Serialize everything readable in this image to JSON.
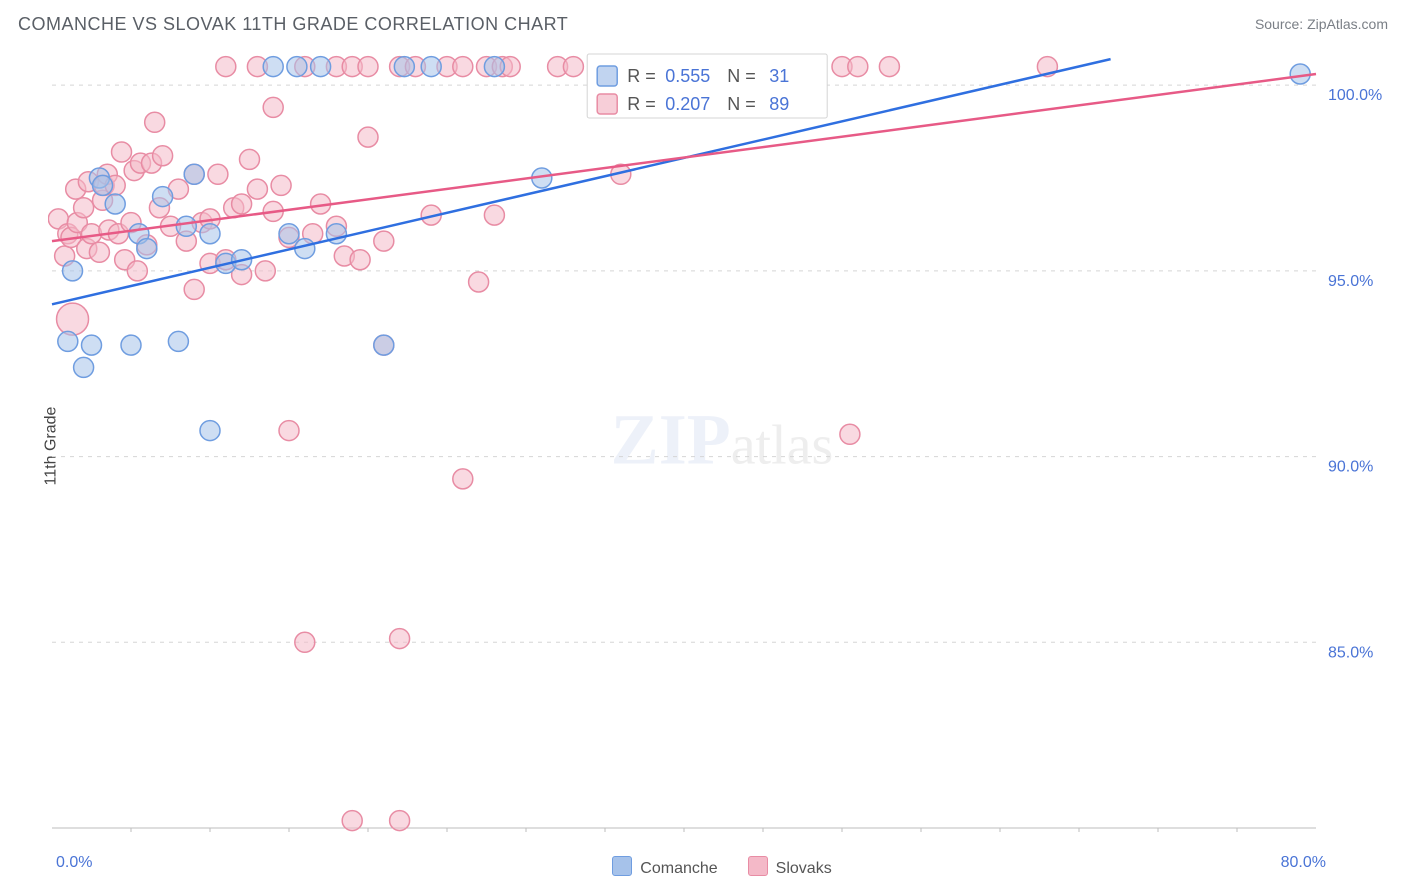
{
  "title": "COMANCHE VS SLOVAK 11TH GRADE CORRELATION CHART",
  "source": "Source: ZipAtlas.com",
  "ylabel": "11th Grade",
  "watermark_part1": "ZIP",
  "watermark_part2": "atlas",
  "chart": {
    "type": "scatter",
    "xlim": [
      0,
      80
    ],
    "ylim": [
      80,
      101
    ],
    "x_tick_labels": {
      "min": "0.0%",
      "max": "80.0%"
    },
    "x_minor_ticks": [
      5,
      10,
      15,
      20,
      25,
      30,
      35,
      40,
      45,
      50,
      55,
      60,
      65,
      70,
      75
    ],
    "y_gridlines": [
      {
        "y": 100,
        "label": "100.0%"
      },
      {
        "y": 95,
        "label": "95.0%"
      },
      {
        "y": 90,
        "label": "90.0%"
      },
      {
        "y": 85,
        "label": "85.0%"
      }
    ],
    "grid_color": "#d5d5d5",
    "axis_color": "#bdbdbd",
    "ytick_label_color": "#4a74d6",
    "ytick_fontsize": 16,
    "background_color": "#ffffff",
    "marker_radius": 10,
    "marker_stroke_width": 1.5,
    "line_width": 2.5,
    "series": [
      {
        "name": "Comanche",
        "fill_color": "#a6c2ea",
        "stroke_color": "#6f9de0",
        "line_color": "#2f6fe0",
        "R": "0.555",
        "N": "31",
        "regression": {
          "x0": 0,
          "y0": 94.1,
          "x1": 67,
          "y1": 100.7
        },
        "points": [
          {
            "x": 1,
            "y": 93.1
          },
          {
            "x": 2,
            "y": 92.4
          },
          {
            "x": 2.5,
            "y": 93.0
          },
          {
            "x": 1.3,
            "y": 95.0
          },
          {
            "x": 3,
            "y": 97.5
          },
          {
            "x": 3.2,
            "y": 97.3
          },
          {
            "x": 4,
            "y": 96.8
          },
          {
            "x": 5,
            "y": 93.0
          },
          {
            "x": 5.5,
            "y": 96.0
          },
          {
            "x": 6,
            "y": 95.6
          },
          {
            "x": 7,
            "y": 97.0
          },
          {
            "x": 8,
            "y": 93.1
          },
          {
            "x": 8.5,
            "y": 96.2
          },
          {
            "x": 9,
            "y": 97.6
          },
          {
            "x": 10,
            "y": 96.0
          },
          {
            "x": 10,
            "y": 90.7
          },
          {
            "x": 11,
            "y": 95.2
          },
          {
            "x": 12,
            "y": 95.3
          },
          {
            "x": 14,
            "y": 100.5
          },
          {
            "x": 15,
            "y": 96.0
          },
          {
            "x": 15.5,
            "y": 100.5
          },
          {
            "x": 16,
            "y": 95.6
          },
          {
            "x": 17,
            "y": 100.5
          },
          {
            "x": 18,
            "y": 96.0
          },
          {
            "x": 21,
            "y": 93.0
          },
          {
            "x": 22.3,
            "y": 100.5
          },
          {
            "x": 24,
            "y": 100.5
          },
          {
            "x": 28,
            "y": 100.5
          },
          {
            "x": 31,
            "y": 97.5
          },
          {
            "x": 40,
            "y": 100.5
          },
          {
            "x": 79,
            "y": 100.3
          }
        ]
      },
      {
        "name": "Slovaks",
        "fill_color": "#f4b9c8",
        "stroke_color": "#e88ca4",
        "line_color": "#e75a86",
        "R": "0.207",
        "N": "89",
        "regression": {
          "x0": 0,
          "y0": 95.8,
          "x1": 80,
          "y1": 100.3
        },
        "points": [
          {
            "x": 0.4,
            "y": 96.4
          },
          {
            "x": 0.8,
            "y": 95.4
          },
          {
            "x": 1,
            "y": 96.0
          },
          {
            "x": 1.2,
            "y": 95.9
          },
          {
            "x": 1.3,
            "y": 93.7,
            "r": 16
          },
          {
            "x": 1.5,
            "y": 97.2
          },
          {
            "x": 1.6,
            "y": 96.3
          },
          {
            "x": 2,
            "y": 96.7
          },
          {
            "x": 2.2,
            "y": 95.6
          },
          {
            "x": 2.3,
            "y": 97.4
          },
          {
            "x": 2.5,
            "y": 96.0
          },
          {
            "x": 3,
            "y": 95.5
          },
          {
            "x": 3.2,
            "y": 96.9
          },
          {
            "x": 3.3,
            "y": 97.3
          },
          {
            "x": 3.5,
            "y": 97.6
          },
          {
            "x": 3.6,
            "y": 96.1
          },
          {
            "x": 4,
            "y": 97.3
          },
          {
            "x": 4.2,
            "y": 96.0
          },
          {
            "x": 4.4,
            "y": 98.2
          },
          {
            "x": 4.6,
            "y": 95.3
          },
          {
            "x": 5,
            "y": 96.3
          },
          {
            "x": 5.2,
            "y": 97.7
          },
          {
            "x": 5.4,
            "y": 95.0
          },
          {
            "x": 5.6,
            "y": 97.9
          },
          {
            "x": 6,
            "y": 95.7
          },
          {
            "x": 6.3,
            "y": 97.9
          },
          {
            "x": 6.5,
            "y": 99.0
          },
          {
            "x": 6.8,
            "y": 96.7
          },
          {
            "x": 7,
            "y": 98.1
          },
          {
            "x": 7.5,
            "y": 96.2
          },
          {
            "x": 8,
            "y": 97.2
          },
          {
            "x": 8.5,
            "y": 95.8
          },
          {
            "x": 9,
            "y": 97.6
          },
          {
            "x": 9,
            "y": 94.5
          },
          {
            "x": 9.5,
            "y": 96.3
          },
          {
            "x": 10,
            "y": 96.4
          },
          {
            "x": 10,
            "y": 95.2
          },
          {
            "x": 10.5,
            "y": 97.6
          },
          {
            "x": 11,
            "y": 95.3
          },
          {
            "x": 11,
            "y": 100.5
          },
          {
            "x": 11.5,
            "y": 96.7
          },
          {
            "x": 12,
            "y": 96.8
          },
          {
            "x": 12,
            "y": 94.9
          },
          {
            "x": 12.5,
            "y": 98.0
          },
          {
            "x": 13,
            "y": 100.5
          },
          {
            "x": 13,
            "y": 97.2
          },
          {
            "x": 13.5,
            "y": 95.0
          },
          {
            "x": 14,
            "y": 96.6
          },
          {
            "x": 14,
            "y": 99.4
          },
          {
            "x": 14.5,
            "y": 97.3
          },
          {
            "x": 15,
            "y": 90.7
          },
          {
            "x": 15,
            "y": 95.9
          },
          {
            "x": 16,
            "y": 100.5
          },
          {
            "x": 16,
            "y": 85.0
          },
          {
            "x": 16.5,
            "y": 96.0
          },
          {
            "x": 17,
            "y": 96.8
          },
          {
            "x": 18,
            "y": 100.5
          },
          {
            "x": 18,
            "y": 96.2
          },
          {
            "x": 18.5,
            "y": 95.4
          },
          {
            "x": 19,
            "y": 100.5
          },
          {
            "x": 19,
            "y": 80.2
          },
          {
            "x": 19.5,
            "y": 95.3
          },
          {
            "x": 20,
            "y": 98.6
          },
          {
            "x": 20,
            "y": 100.5
          },
          {
            "x": 21,
            "y": 95.8
          },
          {
            "x": 21,
            "y": 93.0
          },
          {
            "x": 22,
            "y": 80.2
          },
          {
            "x": 22,
            "y": 100.5
          },
          {
            "x": 22,
            "y": 85.1
          },
          {
            "x": 23,
            "y": 100.5
          },
          {
            "x": 24,
            "y": 96.5
          },
          {
            "x": 25,
            "y": 100.5
          },
          {
            "x": 26,
            "y": 100.5
          },
          {
            "x": 26,
            "y": 89.4
          },
          {
            "x": 27,
            "y": 94.7
          },
          {
            "x": 27.5,
            "y": 100.5
          },
          {
            "x": 28,
            "y": 96.5
          },
          {
            "x": 28.5,
            "y": 100.5
          },
          {
            "x": 29,
            "y": 100.5
          },
          {
            "x": 32,
            "y": 100.5
          },
          {
            "x": 33,
            "y": 100.5
          },
          {
            "x": 35,
            "y": 100.5
          },
          {
            "x": 36,
            "y": 97.6
          },
          {
            "x": 38,
            "y": 100.5
          },
          {
            "x": 50,
            "y": 100.5
          },
          {
            "x": 50.5,
            "y": 90.6
          },
          {
            "x": 51,
            "y": 100.5
          },
          {
            "x": 53,
            "y": 100.5
          },
          {
            "x": 63,
            "y": 100.5
          }
        ]
      }
    ]
  },
  "legend": {
    "items": [
      {
        "label": "Comanche",
        "series_index": 0
      },
      {
        "label": "Slovaks",
        "series_index": 1
      }
    ]
  }
}
